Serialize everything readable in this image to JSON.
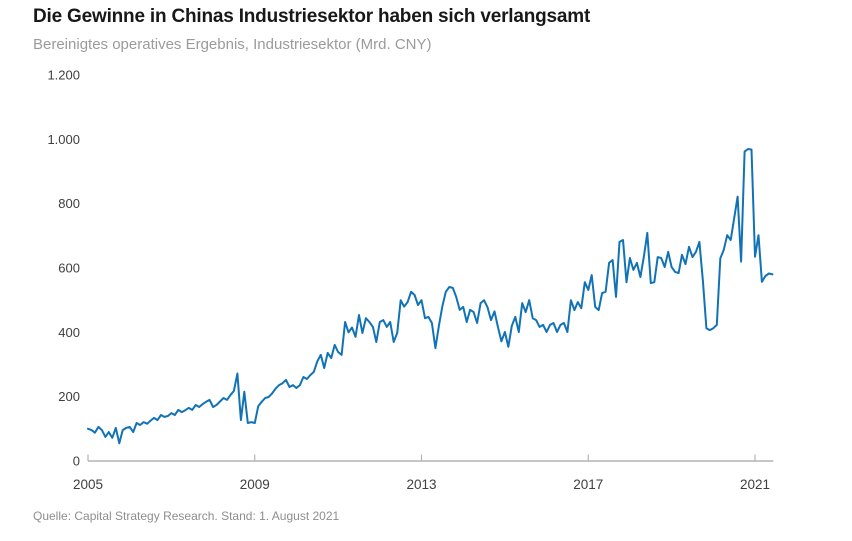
{
  "header": {
    "title": "Die Gewinne in Chinas Industriesektor haben sich verlangsamt",
    "subtitle": "Bereinigtes operatives Ergebnis, Industriesektor (Mrd. CNY)"
  },
  "footer": {
    "source": "Quelle: Capital Strategy Research. Stand: 1. August 2021"
  },
  "colors": {
    "line": "#1173b5",
    "title": "#181818",
    "subtitle": "#9b9b9b",
    "axis_label": "#3f3f3f",
    "axis_line": "#b3b3b3",
    "source": "#8e8e8e",
    "background": "#ffffff"
  },
  "chart_data": {
    "type": "line",
    "title": "Die Gewinne in Chinas Industriesektor haben sich verlangsamt",
    "subtitle": "Bereinigtes operatives Ergebnis, Industriesektor (Mrd. CNY)",
    "unit": "Mrd. CNY",
    "frequency": "monthly",
    "x_start": "2005-01",
    "x_end": "2021-06",
    "grid": false,
    "legend": "none",
    "ylim": [
      0,
      1200
    ],
    "ytick_values": [
      0,
      200,
      400,
      600,
      800,
      1000,
      1200
    ],
    "ytick_labels": [
      "0",
      "200",
      "400",
      "600",
      "800",
      "1.000",
      "1.200"
    ],
    "xtick_labels": [
      "2005",
      "2009",
      "2013",
      "2017",
      "2021"
    ],
    "xtick_months": [
      0,
      48,
      96,
      144,
      192
    ],
    "series": [
      {
        "name": "Bereinigtes operatives Ergebnis, Industriesektor",
        "values": [
          100,
          96,
          88,
          106,
          96,
          75,
          90,
          72,
          103,
          55,
          96,
          103,
          106,
          90,
          118,
          112,
          121,
          116,
          125,
          134,
          127,
          143,
          137,
          140,
          149,
          143,
          159,
          152,
          158,
          165,
          159,
          174,
          168,
          177,
          184,
          190,
          168,
          174,
          185,
          196,
          190,
          205,
          218,
          272,
          127,
          215,
          118,
          121,
          118,
          170,
          184,
          196,
          199,
          210,
          225,
          236,
          242,
          252,
          230,
          236,
          227,
          236,
          261,
          255,
          267,
          277,
          310,
          330,
          289,
          336,
          320,
          361,
          339,
          330,
          432,
          400,
          415,
          386,
          454,
          398,
          444,
          432,
          417,
          370,
          432,
          438,
          417,
          432,
          370,
          398,
          500,
          480,
          494,
          526,
          516,
          485,
          500,
          444,
          448,
          429,
          351,
          420,
          480,
          526,
          541,
          538,
          510,
          470,
          479,
          432,
          470,
          463,
          429,
          491,
          500,
          478,
          438,
          465,
          417,
          372,
          401,
          355,
          420,
          448,
          401,
          491,
          463,
          500,
          444,
          438,
          417,
          423,
          401,
          423,
          429,
          401,
          423,
          429,
          401,
          500,
          469,
          494,
          475,
          556,
          532,
          578,
          479,
          469,
          522,
          526,
          616,
          625,
          510,
          681,
          687,
          556,
          631,
          594,
          616,
          572,
          634,
          709,
          553,
          556,
          634,
          631,
          603,
          650,
          603,
          588,
          584,
          641,
          612,
          666,
          634,
          650,
          681,
          560,
          413,
          407,
          413,
          423,
          630,
          656,
          702,
          687,
          755,
          822,
          620,
          962,
          970,
          968,
          635,
          702,
          557,
          575,
          583,
          580
        ]
      }
    ]
  }
}
